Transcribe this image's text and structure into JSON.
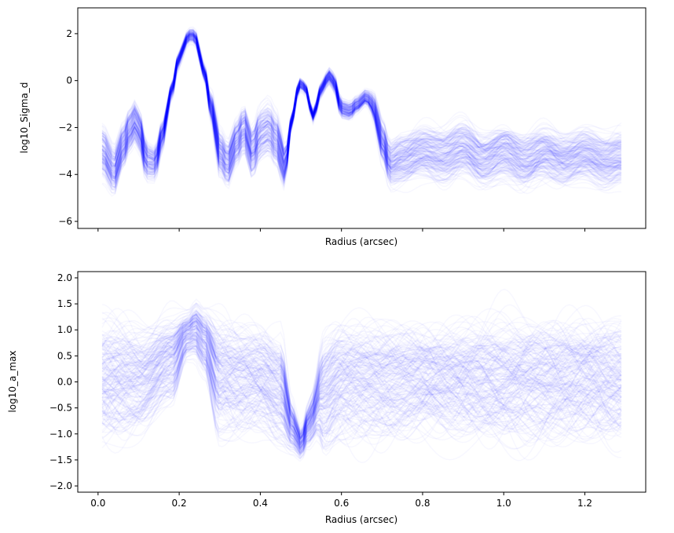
{
  "chart_data": [
    {
      "type": "line",
      "ylabel": "log10_Sigma_d",
      "xlabel": "Radius (arcsec)",
      "xlim": [
        -0.05,
        1.35
      ],
      "ylim": [
        -6.3,
        3.1
      ],
      "xticks": [
        0.0,
        0.2,
        0.4,
        0.6,
        0.8,
        1.0,
        1.2
      ],
      "xtick_labels_shown": false,
      "yticks": [
        -6,
        -4,
        -2,
        0,
        2
      ],
      "ytick_labels": [
        "−6",
        "−4",
        "−2",
        "0",
        "2"
      ],
      "series_count": 200,
      "series_color": "#0000ff",
      "series_alpha": 0.03,
      "x_range": [
        0.01,
        1.29
      ],
      "median_profile": {
        "x": [
          0.01,
          0.04,
          0.06,
          0.08,
          0.09,
          0.1,
          0.12,
          0.14,
          0.16,
          0.18,
          0.2,
          0.22,
          0.23,
          0.24,
          0.26,
          0.28,
          0.3,
          0.32,
          0.34,
          0.36,
          0.38,
          0.4,
          0.42,
          0.44,
          0.46,
          0.48,
          0.49,
          0.5,
          0.51,
          0.53,
          0.55,
          0.56,
          0.57,
          0.58,
          0.6,
          0.62,
          0.64,
          0.66,
          0.67,
          0.68,
          0.7,
          0.72,
          0.75,
          0.8,
          0.85,
          0.9,
          0.95,
          1.0,
          1.05,
          1.1,
          1.15,
          1.2,
          1.25,
          1.29
        ],
        "y": [
          -3.0,
          -3.8,
          -2.8,
          -2.0,
          -1.7,
          -2.0,
          -3.4,
          -3.5,
          -2.2,
          -0.5,
          1.0,
          1.8,
          2.0,
          1.8,
          0.5,
          -1.2,
          -3.0,
          -3.5,
          -2.6,
          -2.0,
          -3.0,
          -2.2,
          -2.0,
          -2.5,
          -3.6,
          -1.5,
          -0.5,
          -0.1,
          -0.3,
          -1.5,
          -0.4,
          0.0,
          0.2,
          0.0,
          -1.2,
          -1.3,
          -1.0,
          -0.7,
          -0.8,
          -1.2,
          -2.5,
          -3.5,
          -3.3,
          -3.0,
          -3.2,
          -2.8,
          -3.3,
          -3.0,
          -3.4,
          -3.0,
          -3.3,
          -3.1,
          -3.4,
          -3.2
        ]
      },
      "spread": {
        "x": [
          0.01,
          0.1,
          0.15,
          0.18,
          0.22,
          0.26,
          0.3,
          0.45,
          0.48,
          0.52,
          0.55,
          0.6,
          0.66,
          0.7,
          0.75,
          1.29
        ],
        "sd": [
          0.9,
          0.8,
          0.6,
          0.3,
          0.25,
          0.3,
          0.9,
          0.9,
          0.25,
          0.2,
          0.25,
          0.35,
          0.3,
          0.8,
          1.0,
          1.0
        ]
      }
    },
    {
      "type": "line",
      "ylabel": "log10_a_max",
      "xlabel": "Radius (arcsec)",
      "xlim": [
        -0.05,
        1.35
      ],
      "ylim": [
        -2.12,
        2.12
      ],
      "xticks": [
        0.0,
        0.2,
        0.4,
        0.6,
        0.8,
        1.0,
        1.2
      ],
      "xtick_labels": [
        "0.0",
        "0.2",
        "0.4",
        "0.6",
        "0.8",
        "1.0",
        "1.2"
      ],
      "yticks": [
        -2.0,
        -1.5,
        -1.0,
        -0.5,
        0.0,
        0.5,
        1.0,
        1.5,
        2.0
      ],
      "ytick_labels": [
        "−2.0",
        "−1.5",
        "−1.0",
        "−0.5",
        "0.0",
        "0.5",
        "1.0",
        "1.5",
        "2.0"
      ],
      "series_count": 200,
      "series_color": "#0000ff",
      "series_alpha": 0.03,
      "x_range": [
        0.01,
        1.29
      ],
      "median_profile": {
        "x": [
          0.01,
          0.1,
          0.18,
          0.22,
          0.24,
          0.26,
          0.3,
          0.35,
          0.4,
          0.45,
          0.48,
          0.5,
          0.52,
          0.55,
          0.6,
          0.7,
          0.8,
          0.9,
          1.0,
          1.1,
          1.2,
          1.29
        ],
        "y": [
          0.0,
          0.0,
          0.4,
          0.9,
          1.0,
          0.8,
          0.1,
          0.0,
          0.0,
          -0.2,
          -0.9,
          -1.2,
          -0.8,
          -0.3,
          0.0,
          0.0,
          0.0,
          0.0,
          0.0,
          0.0,
          0.0,
          0.0
        ]
      },
      "spread": {
        "x": [
          0.01,
          0.18,
          0.22,
          0.26,
          0.3,
          0.45,
          0.48,
          0.5,
          0.53,
          0.56,
          1.29
        ],
        "sd": [
          1.0,
          0.7,
          0.35,
          0.5,
          1.0,
          0.9,
          0.4,
          0.25,
          0.4,
          0.9,
          1.0
        ]
      }
    }
  ]
}
